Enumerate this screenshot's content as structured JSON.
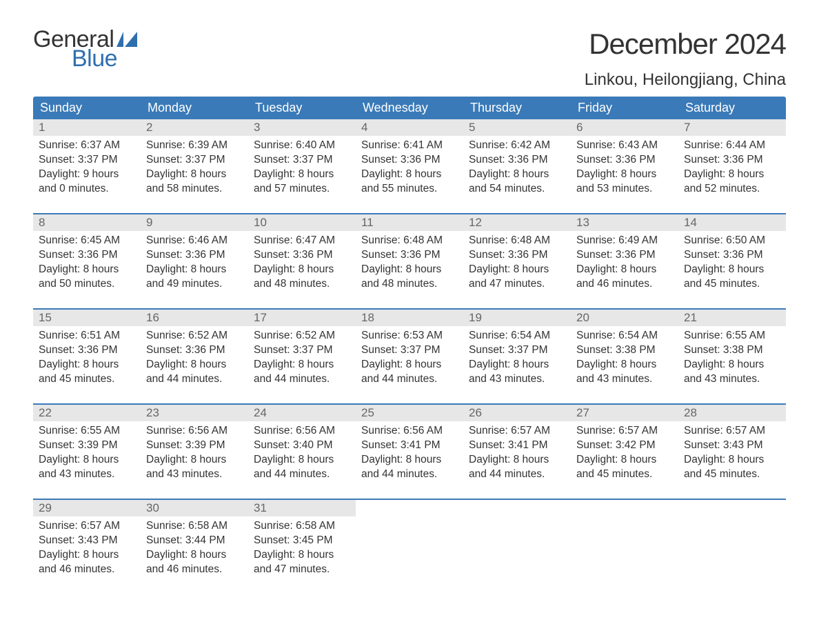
{
  "logo": {
    "text_top": "General",
    "text_bottom": "Blue"
  },
  "title": "December 2024",
  "location": "Linkou, Heilongjiang, China",
  "colors": {
    "header_bg": "#3a7ab8",
    "header_text": "#ffffff",
    "daynum_bg": "#e7e7e7",
    "daynum_text": "#666666",
    "body_text": "#333333",
    "week_border": "#3a7ab8",
    "logo_blue": "#2f6fae",
    "background": "#ffffff"
  },
  "weekdays": [
    "Sunday",
    "Monday",
    "Tuesday",
    "Wednesday",
    "Thursday",
    "Friday",
    "Saturday"
  ],
  "days": [
    {
      "n": 1,
      "sunrise": "6:37 AM",
      "sunset": "3:37 PM",
      "dh": 9,
      "dm": 0
    },
    {
      "n": 2,
      "sunrise": "6:39 AM",
      "sunset": "3:37 PM",
      "dh": 8,
      "dm": 58
    },
    {
      "n": 3,
      "sunrise": "6:40 AM",
      "sunset": "3:37 PM",
      "dh": 8,
      "dm": 57
    },
    {
      "n": 4,
      "sunrise": "6:41 AM",
      "sunset": "3:36 PM",
      "dh": 8,
      "dm": 55
    },
    {
      "n": 5,
      "sunrise": "6:42 AM",
      "sunset": "3:36 PM",
      "dh": 8,
      "dm": 54
    },
    {
      "n": 6,
      "sunrise": "6:43 AM",
      "sunset": "3:36 PM",
      "dh": 8,
      "dm": 53
    },
    {
      "n": 7,
      "sunrise": "6:44 AM",
      "sunset": "3:36 PM",
      "dh": 8,
      "dm": 52
    },
    {
      "n": 8,
      "sunrise": "6:45 AM",
      "sunset": "3:36 PM",
      "dh": 8,
      "dm": 50
    },
    {
      "n": 9,
      "sunrise": "6:46 AM",
      "sunset": "3:36 PM",
      "dh": 8,
      "dm": 49
    },
    {
      "n": 10,
      "sunrise": "6:47 AM",
      "sunset": "3:36 PM",
      "dh": 8,
      "dm": 48
    },
    {
      "n": 11,
      "sunrise": "6:48 AM",
      "sunset": "3:36 PM",
      "dh": 8,
      "dm": 48
    },
    {
      "n": 12,
      "sunrise": "6:48 AM",
      "sunset": "3:36 PM",
      "dh": 8,
      "dm": 47
    },
    {
      "n": 13,
      "sunrise": "6:49 AM",
      "sunset": "3:36 PM",
      "dh": 8,
      "dm": 46
    },
    {
      "n": 14,
      "sunrise": "6:50 AM",
      "sunset": "3:36 PM",
      "dh": 8,
      "dm": 45
    },
    {
      "n": 15,
      "sunrise": "6:51 AM",
      "sunset": "3:36 PM",
      "dh": 8,
      "dm": 45
    },
    {
      "n": 16,
      "sunrise": "6:52 AM",
      "sunset": "3:36 PM",
      "dh": 8,
      "dm": 44
    },
    {
      "n": 17,
      "sunrise": "6:52 AM",
      "sunset": "3:37 PM",
      "dh": 8,
      "dm": 44
    },
    {
      "n": 18,
      "sunrise": "6:53 AM",
      "sunset": "3:37 PM",
      "dh": 8,
      "dm": 44
    },
    {
      "n": 19,
      "sunrise": "6:54 AM",
      "sunset": "3:37 PM",
      "dh": 8,
      "dm": 43
    },
    {
      "n": 20,
      "sunrise": "6:54 AM",
      "sunset": "3:38 PM",
      "dh": 8,
      "dm": 43
    },
    {
      "n": 21,
      "sunrise": "6:55 AM",
      "sunset": "3:38 PM",
      "dh": 8,
      "dm": 43
    },
    {
      "n": 22,
      "sunrise": "6:55 AM",
      "sunset": "3:39 PM",
      "dh": 8,
      "dm": 43
    },
    {
      "n": 23,
      "sunrise": "6:56 AM",
      "sunset": "3:39 PM",
      "dh": 8,
      "dm": 43
    },
    {
      "n": 24,
      "sunrise": "6:56 AM",
      "sunset": "3:40 PM",
      "dh": 8,
      "dm": 44
    },
    {
      "n": 25,
      "sunrise": "6:56 AM",
      "sunset": "3:41 PM",
      "dh": 8,
      "dm": 44
    },
    {
      "n": 26,
      "sunrise": "6:57 AM",
      "sunset": "3:41 PM",
      "dh": 8,
      "dm": 44
    },
    {
      "n": 27,
      "sunrise": "6:57 AM",
      "sunset": "3:42 PM",
      "dh": 8,
      "dm": 45
    },
    {
      "n": 28,
      "sunrise": "6:57 AM",
      "sunset": "3:43 PM",
      "dh": 8,
      "dm": 45
    },
    {
      "n": 29,
      "sunrise": "6:57 AM",
      "sunset": "3:43 PM",
      "dh": 8,
      "dm": 46
    },
    {
      "n": 30,
      "sunrise": "6:58 AM",
      "sunset": "3:44 PM",
      "dh": 8,
      "dm": 46
    },
    {
      "n": 31,
      "sunrise": "6:58 AM",
      "sunset": "3:45 PM",
      "dh": 8,
      "dm": 47
    }
  ],
  "labels": {
    "sunrise": "Sunrise:",
    "sunset": "Sunset:",
    "daylight": "Daylight:",
    "hours": "hours",
    "and": "and",
    "minutes": "minutes."
  },
  "layout": {
    "first_weekday_index": 0,
    "trailing_empty": 4
  }
}
